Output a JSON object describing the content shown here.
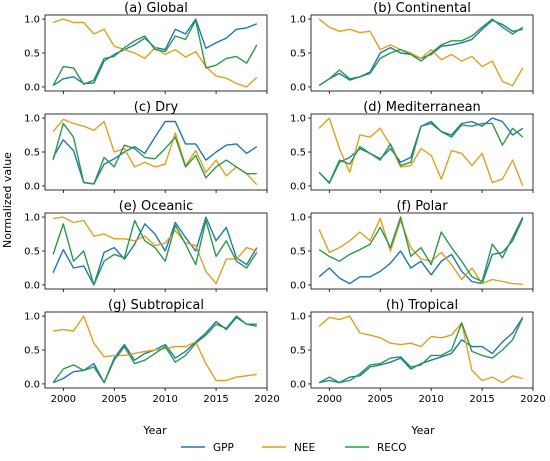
{
  "chart_data": {
    "type": "line",
    "ylabel": "Normalized value",
    "xlabel": "Year",
    "xlim": [
      1998.2,
      2020
    ],
    "ylim": [
      -0.06,
      1.06
    ],
    "xticks": [
      2000,
      2005,
      2010,
      2015,
      2020
    ],
    "yticks": [
      0.0,
      0.5,
      1.0
    ],
    "ytick_labels": [
      "0.0",
      "0.5",
      "1.0"
    ],
    "legend": {
      "placement": "bottom-center"
    },
    "x": [
      1999,
      2000,
      2001,
      2002,
      2003,
      2004,
      2005,
      2006,
      2007,
      2008,
      2009,
      2010,
      2011,
      2012,
      2013,
      2014,
      2015,
      2016,
      2017,
      2018,
      2019
    ],
    "series_meta": [
      {
        "key": "gpp",
        "name": "GPP",
        "color": "#1f77b4"
      },
      {
        "key": "nee",
        "name": "NEE",
        "color": "#e0a020"
      },
      {
        "key": "reco",
        "name": "RECO",
        "color": "#2a9a48"
      }
    ],
    "panels": [
      {
        "title": "(a) Global",
        "gpp": [
          0.02,
          0.12,
          0.15,
          0.05,
          0.06,
          0.38,
          0.48,
          0.55,
          0.62,
          0.72,
          0.58,
          0.55,
          0.85,
          0.78,
          1.0,
          0.57,
          0.65,
          0.72,
          0.85,
          0.87,
          0.93
        ],
        "nee": [
          0.95,
          1.0,
          0.95,
          0.95,
          0.78,
          0.85,
          0.6,
          0.55,
          0.5,
          0.42,
          0.58,
          0.48,
          0.55,
          0.44,
          0.52,
          0.3,
          0.16,
          0.13,
          0.05,
          0.0,
          0.14
        ],
        "reco": [
          0.02,
          0.3,
          0.28,
          0.04,
          0.1,
          0.42,
          0.45,
          0.58,
          0.68,
          0.75,
          0.55,
          0.52,
          0.75,
          0.7,
          0.98,
          0.28,
          0.32,
          0.42,
          0.45,
          0.35,
          0.62
        ]
      },
      {
        "title": "(b) Continental",
        "gpp": [
          0.02,
          0.12,
          0.2,
          0.1,
          0.15,
          0.22,
          0.5,
          0.58,
          0.5,
          0.48,
          0.42,
          0.48,
          0.6,
          0.62,
          0.65,
          0.7,
          0.85,
          0.98,
          0.92,
          0.82,
          0.85
        ],
        "nee": [
          1.0,
          0.88,
          0.82,
          0.85,
          0.8,
          0.82,
          0.55,
          0.62,
          0.55,
          0.5,
          0.42,
          0.55,
          0.4,
          0.48,
          0.38,
          0.45,
          0.3,
          0.38,
          0.08,
          0.02,
          0.28
        ],
        "reco": [
          0.02,
          0.12,
          0.25,
          0.12,
          0.15,
          0.2,
          0.42,
          0.5,
          0.55,
          0.48,
          0.38,
          0.5,
          0.62,
          0.68,
          0.68,
          0.75,
          0.88,
          1.0,
          0.88,
          0.78,
          0.88
        ]
      },
      {
        "title": "(c) Dry",
        "gpp": [
          0.42,
          0.68,
          0.52,
          0.05,
          0.03,
          0.32,
          0.4,
          0.5,
          0.58,
          0.48,
          0.72,
          0.95,
          0.95,
          0.62,
          0.62,
          0.38,
          0.5,
          0.6,
          0.62,
          0.48,
          0.58
        ],
        "nee": [
          0.8,
          0.98,
          0.92,
          0.88,
          0.82,
          0.95,
          0.5,
          0.55,
          0.28,
          0.35,
          0.28,
          0.32,
          0.78,
          0.3,
          0.52,
          0.2,
          0.38,
          0.15,
          0.28,
          0.18,
          0.02
        ],
        "reco": [
          0.38,
          0.92,
          0.72,
          0.05,
          0.03,
          0.42,
          0.28,
          0.6,
          0.55,
          0.42,
          0.4,
          0.55,
          0.72,
          0.28,
          0.45,
          0.12,
          0.28,
          0.38,
          0.28,
          0.18,
          0.18
        ]
      },
      {
        "title": "(d) Mediterranean",
        "gpp": [
          0.2,
          0.04,
          0.35,
          0.42,
          0.55,
          0.48,
          0.4,
          0.55,
          0.35,
          0.42,
          0.88,
          0.95,
          0.8,
          0.75,
          0.92,
          0.95,
          0.88,
          1.0,
          0.95,
          0.75,
          0.85
        ],
        "nee": [
          0.85,
          1.0,
          0.55,
          0.2,
          0.75,
          0.72,
          0.85,
          0.6,
          0.28,
          0.3,
          0.55,
          0.45,
          0.1,
          0.52,
          0.48,
          0.3,
          0.48,
          0.05,
          0.1,
          0.38,
          0.0
        ],
        "reco": [
          0.2,
          0.05,
          0.38,
          0.32,
          0.58,
          0.48,
          0.38,
          0.62,
          0.3,
          0.35,
          0.88,
          0.92,
          0.8,
          0.72,
          0.9,
          0.88,
          0.92,
          0.92,
          0.6,
          0.85,
          0.72
        ]
      },
      {
        "title": "(e) Oceanic",
        "gpp": [
          0.18,
          0.52,
          0.25,
          0.28,
          0.0,
          0.48,
          0.55,
          0.38,
          0.6,
          0.9,
          0.75,
          0.5,
          0.92,
          0.7,
          0.5,
          1.0,
          0.65,
          0.85,
          0.4,
          0.3,
          0.55
        ],
        "nee": [
          0.98,
          1.0,
          0.92,
          0.95,
          0.72,
          0.75,
          0.68,
          0.68,
          0.65,
          0.72,
          0.58,
          0.62,
          0.8,
          0.62,
          0.58,
          0.2,
          0.02,
          0.38,
          0.38,
          0.55,
          0.5
        ],
        "reco": [
          0.45,
          0.9,
          0.35,
          0.5,
          0.0,
          0.35,
          0.45,
          0.4,
          0.95,
          0.65,
          0.55,
          0.35,
          0.88,
          0.6,
          0.3,
          0.95,
          0.42,
          0.65,
          0.35,
          0.25,
          0.48
        ]
      },
      {
        "title": "(f) Polar",
        "gpp": [
          0.12,
          0.25,
          0.1,
          0.02,
          0.12,
          0.12,
          0.2,
          0.32,
          0.5,
          0.25,
          0.35,
          0.15,
          0.35,
          0.45,
          0.2,
          0.05,
          0.02,
          0.45,
          0.48,
          0.65,
          0.98
        ],
        "nee": [
          0.82,
          0.48,
          0.55,
          0.65,
          0.78,
          0.65,
          0.98,
          0.5,
          0.95,
          0.55,
          0.38,
          0.35,
          0.48,
          0.3,
          0.08,
          0.25,
          0.02,
          0.08,
          0.05,
          0.02,
          0.01
        ],
        "reco": [
          0.52,
          0.42,
          0.35,
          0.45,
          0.52,
          0.6,
          0.85,
          0.55,
          1.0,
          0.42,
          0.55,
          0.3,
          0.78,
          0.55,
          0.35,
          0.12,
          0.05,
          0.6,
          0.4,
          0.7,
          1.0
        ]
      },
      {
        "title": "(g) Subtropical",
        "gpp": [
          0.02,
          0.08,
          0.18,
          0.2,
          0.3,
          0.02,
          0.38,
          0.58,
          0.35,
          0.45,
          0.5,
          0.58,
          0.38,
          0.48,
          0.62,
          0.75,
          0.92,
          0.8,
          0.98,
          0.88,
          0.88
        ],
        "nee": [
          0.78,
          0.8,
          0.78,
          1.0,
          0.6,
          0.4,
          0.42,
          0.42,
          0.45,
          0.48,
          0.5,
          0.52,
          0.55,
          0.55,
          0.62,
          0.3,
          0.05,
          0.05,
          0.1,
          0.12,
          0.14
        ],
        "reco": [
          0.02,
          0.22,
          0.28,
          0.2,
          0.25,
          0.02,
          0.35,
          0.55,
          0.3,
          0.35,
          0.45,
          0.55,
          0.32,
          0.42,
          0.6,
          0.72,
          0.88,
          0.82,
          1.0,
          0.88,
          0.85
        ]
      },
      {
        "title": "(h) Tropical",
        "gpp": [
          0.02,
          0.05,
          0.02,
          0.1,
          0.12,
          0.25,
          0.28,
          0.32,
          0.38,
          0.22,
          0.3,
          0.35,
          0.4,
          0.45,
          0.65,
          0.55,
          0.55,
          0.45,
          0.62,
          0.75,
          0.98
        ],
        "nee": [
          0.85,
          0.98,
          0.95,
          1.0,
          0.75,
          0.72,
          0.68,
          0.6,
          0.58,
          0.6,
          0.55,
          0.7,
          0.68,
          0.72,
          0.9,
          0.2,
          0.05,
          0.1,
          0.02,
          0.12,
          0.08
        ],
        "reco": [
          0.02,
          0.1,
          0.02,
          0.05,
          0.15,
          0.28,
          0.3,
          0.38,
          0.4,
          0.25,
          0.28,
          0.42,
          0.42,
          0.5,
          0.9,
          0.48,
          0.42,
          0.38,
          0.5,
          0.65,
          0.98
        ]
      }
    ]
  }
}
